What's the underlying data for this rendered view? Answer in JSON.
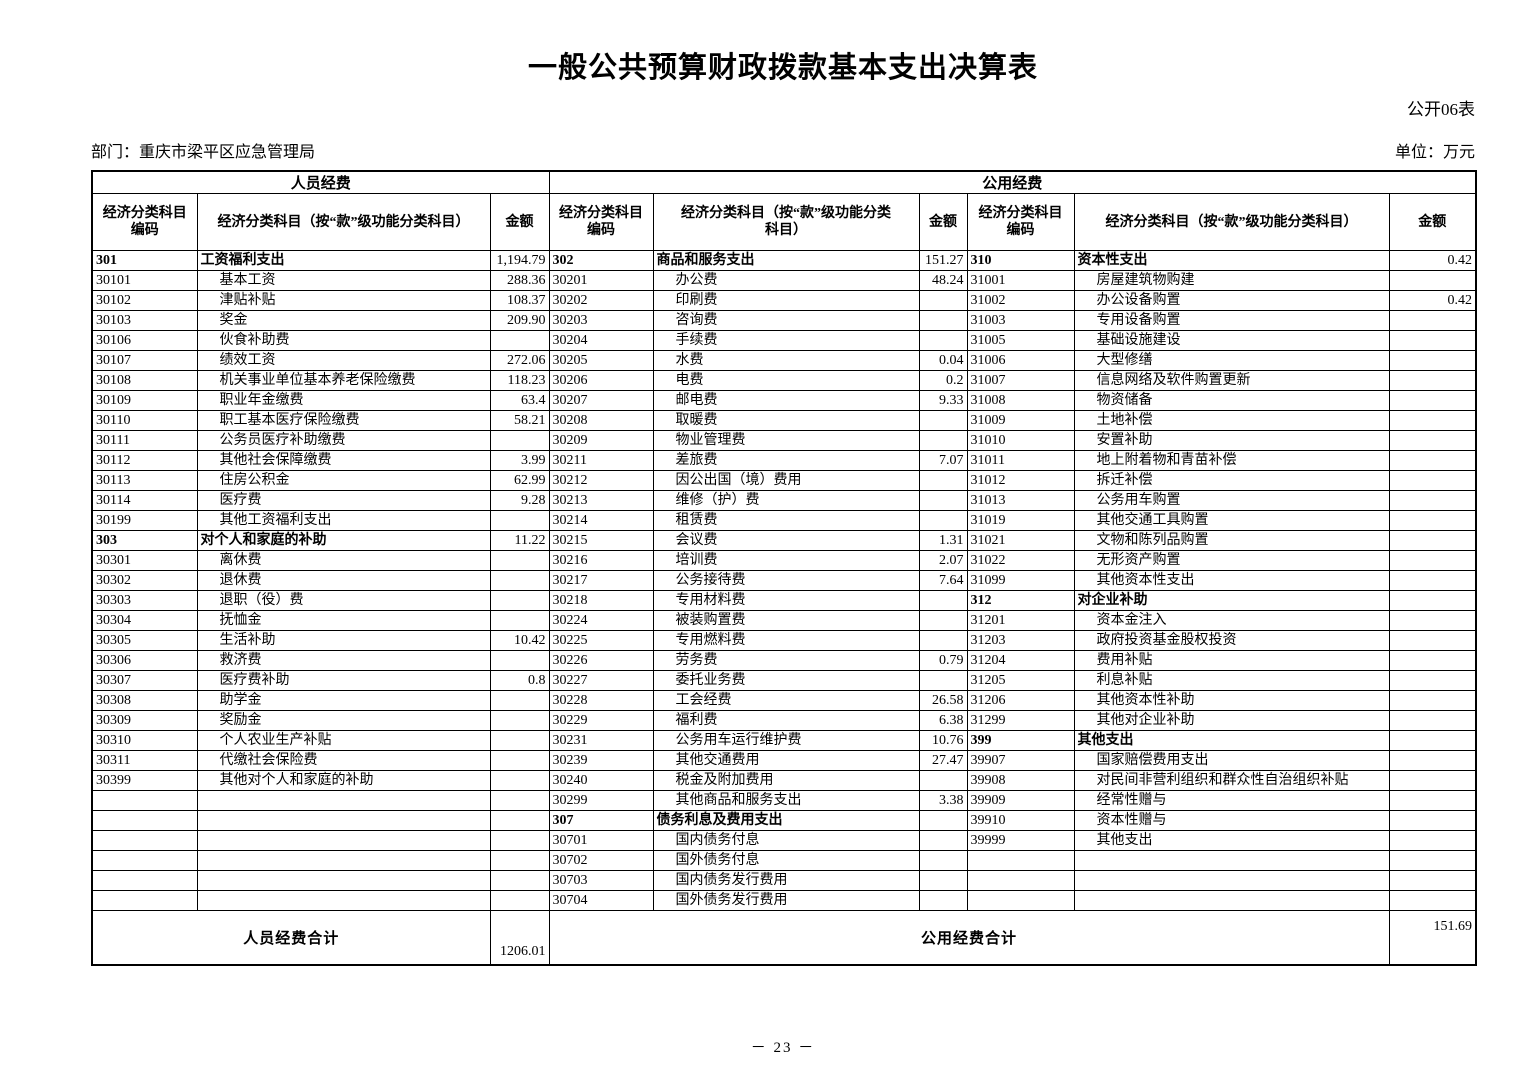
{
  "page": {
    "title": "一般公共预算财政拨款基本支出决算表",
    "table_no": "公开06表",
    "department": "部门：重庆市梁平区应急管理局",
    "unit": "单位：万元",
    "page_number": "－ 23 －"
  },
  "table": {
    "section_headers": [
      "人员经费",
      "公用经费"
    ],
    "column_headers": {
      "code": "经济分类科目\n编码",
      "subject": "经济分类科目（按“款”级功能分类科目）",
      "subject_wrapped": "经济分类科目（按“款”级功能分类\n科目）",
      "amount": "金额"
    },
    "rows": [
      [
        [
          "301",
          "工资福利支出",
          "1,194.79",
          1
        ],
        [
          "302",
          "商品和服务支出",
          "151.27",
          1
        ],
        [
          "310",
          "资本性支出",
          "0.42",
          1
        ]
      ],
      [
        [
          "30101",
          "基本工资",
          "288.36",
          0
        ],
        [
          "30201",
          "办公费",
          "48.24",
          0
        ],
        [
          "31001",
          "房屋建筑物购建",
          "",
          0
        ]
      ],
      [
        [
          "30102",
          "津贴补贴",
          "108.37",
          0
        ],
        [
          "30202",
          "印刷费",
          "",
          0
        ],
        [
          "31002",
          "办公设备购置",
          "0.42",
          0
        ]
      ],
      [
        [
          "30103",
          "奖金",
          "209.90",
          0
        ],
        [
          "30203",
          "咨询费",
          "",
          0
        ],
        [
          "31003",
          "专用设备购置",
          "",
          0
        ]
      ],
      [
        [
          "30106",
          "伙食补助费",
          "",
          0
        ],
        [
          "30204",
          "手续费",
          "",
          0
        ],
        [
          "31005",
          "基础设施建设",
          "",
          0
        ]
      ],
      [
        [
          "30107",
          "绩效工资",
          "272.06",
          0
        ],
        [
          "30205",
          "水费",
          "0.04",
          0
        ],
        [
          "31006",
          "大型修缮",
          "",
          0
        ]
      ],
      [
        [
          "30108",
          "机关事业单位基本养老保险缴费",
          "118.23",
          0
        ],
        [
          "30206",
          "电费",
          "0.2",
          0
        ],
        [
          "31007",
          "信息网络及软件购置更新",
          "",
          0
        ]
      ],
      [
        [
          "30109",
          "职业年金缴费",
          "63.4",
          0
        ],
        [
          "30207",
          "邮电费",
          "9.33",
          0
        ],
        [
          "31008",
          "物资储备",
          "",
          0
        ]
      ],
      [
        [
          "30110",
          "职工基本医疗保险缴费",
          "58.21",
          0
        ],
        [
          "30208",
          "取暖费",
          "",
          0
        ],
        [
          "31009",
          "土地补偿",
          "",
          0
        ]
      ],
      [
        [
          "30111",
          "公务员医疗补助缴费",
          "",
          0
        ],
        [
          "30209",
          "物业管理费",
          "",
          0
        ],
        [
          "31010",
          "安置补助",
          "",
          0
        ]
      ],
      [
        [
          "30112",
          "其他社会保障缴费",
          "3.99",
          0
        ],
        [
          "30211",
          "差旅费",
          "7.07",
          0
        ],
        [
          "31011",
          "地上附着物和青苗补偿",
          "",
          0
        ]
      ],
      [
        [
          "30113",
          "住房公积金",
          "62.99",
          0
        ],
        [
          "30212",
          "因公出国（境）费用",
          "",
          0
        ],
        [
          "31012",
          "拆迁补偿",
          "",
          0
        ]
      ],
      [
        [
          "30114",
          "医疗费",
          "9.28",
          0
        ],
        [
          "30213",
          "维修（护）费",
          "",
          0
        ],
        [
          "31013",
          "公务用车购置",
          "",
          0
        ]
      ],
      [
        [
          "30199",
          "其他工资福利支出",
          "",
          0
        ],
        [
          "30214",
          "租赁费",
          "",
          0
        ],
        [
          "31019",
          "其他交通工具购置",
          "",
          0
        ]
      ],
      [
        [
          "303",
          "对个人和家庭的补助",
          "11.22",
          1
        ],
        [
          "30215",
          "会议费",
          "1.31",
          0
        ],
        [
          "31021",
          "文物和陈列品购置",
          "",
          0
        ]
      ],
      [
        [
          "30301",
          "离休费",
          "",
          0
        ],
        [
          "30216",
          "培训费",
          "2.07",
          0
        ],
        [
          "31022",
          "无形资产购置",
          "",
          0
        ]
      ],
      [
        [
          "30302",
          "退休费",
          "",
          0
        ],
        [
          "30217",
          "公务接待费",
          "7.64",
          0
        ],
        [
          "31099",
          "其他资本性支出",
          "",
          0
        ]
      ],
      [
        [
          "30303",
          "退职（役）费",
          "",
          0
        ],
        [
          "30218",
          "专用材料费",
          "",
          0
        ],
        [
          "312",
          "对企业补助",
          "",
          1
        ]
      ],
      [
        [
          "30304",
          "抚恤金",
          "",
          0
        ],
        [
          "30224",
          "被装购置费",
          "",
          0
        ],
        [
          "31201",
          "资本金注入",
          "",
          0
        ]
      ],
      [
        [
          "30305",
          "生活补助",
          "10.42",
          0
        ],
        [
          "30225",
          "专用燃料费",
          "",
          0
        ],
        [
          "31203",
          "政府投资基金股权投资",
          "",
          0
        ]
      ],
      [
        [
          "30306",
          "救济费",
          "",
          0
        ],
        [
          "30226",
          "劳务费",
          "0.79",
          0
        ],
        [
          "31204",
          "费用补贴",
          "",
          0
        ]
      ],
      [
        [
          "30307",
          "医疗费补助",
          "0.8",
          0
        ],
        [
          "30227",
          "委托业务费",
          "",
          0
        ],
        [
          "31205",
          "利息补贴",
          "",
          0
        ]
      ],
      [
        [
          "30308",
          "助学金",
          "",
          0
        ],
        [
          "30228",
          "工会经费",
          "26.58",
          0
        ],
        [
          "31206",
          "其他资本性补助",
          "",
          0
        ]
      ],
      [
        [
          "30309",
          "奖励金",
          "",
          0
        ],
        [
          "30229",
          "福利费",
          "6.38",
          0
        ],
        [
          "31299",
          "其他对企业补助",
          "",
          0
        ]
      ],
      [
        [
          "30310",
          "个人农业生产补贴",
          "",
          0
        ],
        [
          "30231",
          "公务用车运行维护费",
          "10.76",
          0
        ],
        [
          "399",
          "其他支出",
          "",
          1
        ]
      ],
      [
        [
          "30311",
          "代缴社会保险费",
          "",
          0
        ],
        [
          "30239",
          "其他交通费用",
          "27.47",
          0
        ],
        [
          "39907",
          "国家赔偿费用支出",
          "",
          0
        ]
      ],
      [
        [
          "30399",
          "其他对个人和家庭的补助",
          "",
          0
        ],
        [
          "30240",
          "税金及附加费用",
          "",
          0
        ],
        [
          "39908",
          "对民间非营利组织和群众性自治组织补贴",
          "",
          0
        ]
      ],
      [
        [
          "",
          "",
          "",
          0
        ],
        [
          "30299",
          "其他商品和服务支出",
          "3.38",
          0
        ],
        [
          "39909",
          "经常性赠与",
          "",
          0
        ]
      ],
      [
        [
          "",
          "",
          "",
          0
        ],
        [
          "307",
          "债务利息及费用支出",
          "",
          1
        ],
        [
          "39910",
          "资本性赠与",
          "",
          0
        ]
      ],
      [
        [
          "",
          "",
          "",
          0
        ],
        [
          "30701",
          "国内债务付息",
          "",
          0
        ],
        [
          "39999",
          "其他支出",
          "",
          0
        ]
      ],
      [
        [
          "",
          "",
          "",
          0
        ],
        [
          "30702",
          "国外债务付息",
          "",
          0
        ],
        [
          "",
          "",
          "",
          0
        ]
      ],
      [
        [
          "",
          "",
          "",
          0
        ],
        [
          "30703",
          "国内债务发行费用",
          "",
          0
        ],
        [
          "",
          "",
          "",
          0
        ]
      ],
      [
        [
          "",
          "",
          "",
          0
        ],
        [
          "30704",
          "国外债务发行费用",
          "",
          0
        ],
        [
          "",
          "",
          "",
          0
        ]
      ]
    ],
    "footer": {
      "personnel_total_label": "人员经费合计",
      "personnel_total": "1206.01",
      "public_total_label": "公用经费合计",
      "public_total": "151.69"
    }
  }
}
